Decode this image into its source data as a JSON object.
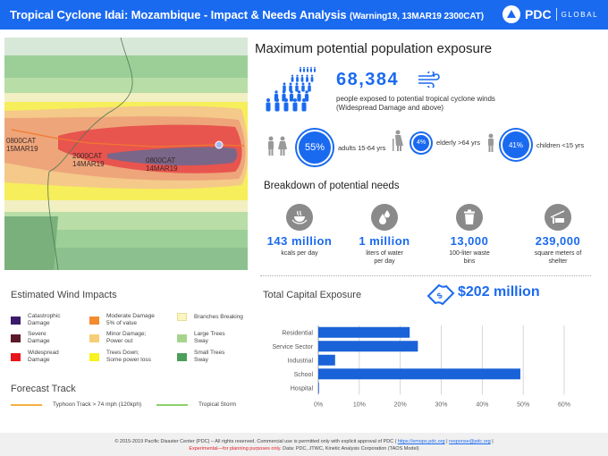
{
  "header": {
    "title": "Tropical Cyclone Idai: Mozambique - Impact & Needs Analysis",
    "subtitle": "(Warning19, 13MAR19 2300CAT)",
    "logo_brand": "PDC",
    "logo_tag": "GLOBAL"
  },
  "map": {
    "labels": [
      {
        "time": "0800CAT",
        "date": "15MAR19"
      },
      {
        "time": "2000CAT",
        "date": "14MAR19"
      },
      {
        "time": "0800CAT",
        "date": "14MAR19"
      }
    ]
  },
  "exposure": {
    "heading": "Maximum potential population exposure",
    "count": "68,384",
    "description": "people exposed to potential tropical cyclone winds",
    "qualifier": "(Widespread Damage and above)",
    "demographics": [
      {
        "percent": "55%",
        "label": "adults 15-64 yrs",
        "icon": "adults-icon"
      },
      {
        "percent": "4%",
        "label": "elderly >64 yrs",
        "icon": "elderly-icon"
      },
      {
        "percent": "41%",
        "label": "children <15 yrs",
        "icon": "child-icon"
      }
    ]
  },
  "needs": {
    "heading": "Breakdown of potential needs",
    "items": [
      {
        "value": "143 million",
        "unit1": "kcals per day",
        "unit2": "",
        "icon": "food-bowl-icon"
      },
      {
        "value": "1 million",
        "unit1": "liters of water",
        "unit2": "per day",
        "icon": "water-drop-icon"
      },
      {
        "value": "13,000",
        "unit1": "100-liter  waste",
        "unit2": "bins",
        "icon": "trash-bin-icon"
      },
      {
        "value": "239,000",
        "unit1": "square meters of",
        "unit2": "shelter",
        "icon": "shelter-icon"
      }
    ]
  },
  "wind_impacts": {
    "heading": "Estimated Wind Impacts",
    "items": [
      {
        "l1": "Catastrophic",
        "l2": "Damage",
        "color": "#3a1a6a"
      },
      {
        "l1": "Severe",
        "l2": "Damage",
        "color": "#5a1a2a"
      },
      {
        "l1": "Widespread",
        "l2": "Damage",
        "color": "#e8141c"
      },
      {
        "l1": "Moderate Damage",
        "l2": "5% of value",
        "color": "#f58a2e"
      },
      {
        "l1": "Minor Damage;",
        "l2": "Power out",
        "color": "#f5cf78"
      },
      {
        "l1": "Trees Down;",
        "l2": "Some power loss",
        "color": "#f8f21e"
      },
      {
        "l1": "Branches Breaking",
        "l2": "",
        "color": "#fbf5c0"
      },
      {
        "l1": "Large Trees",
        "l2": "Sway",
        "color": "#a6d48c"
      },
      {
        "l1": "Small Trees",
        "l2": "Sway",
        "color": "#4aa05a"
      }
    ]
  },
  "forecast_track": {
    "heading": "Forecast Track",
    "items": [
      {
        "label": "Typhoon Track > 74 mph (120kph)",
        "color": "#f5b040"
      },
      {
        "label": "Tropical Storm",
        "color": "#8ccf6a"
      }
    ]
  },
  "capital": {
    "heading": "Total Capital Exposure",
    "total": "$202 million"
  },
  "chart_data": {
    "type": "bar",
    "orientation": "horizontal",
    "title": "Total Capital Exposure",
    "categories": [
      "Residential",
      "Service Sector",
      "Industrial",
      "School",
      "Hospital"
    ],
    "values": [
      22.3,
      24.3,
      4.1,
      49.3,
      0.1
    ],
    "unit": "%",
    "xlim": [
      0,
      60
    ],
    "xticks": [
      "0%",
      "10%",
      "20%",
      "30%",
      "40%",
      "50%",
      "60%"
    ],
    "grid": true,
    "bar_color": "#1a62d8"
  },
  "footer": {
    "copyright": "© 2015-2019 Pacific Disaster Center (PDC) – All rights reserved. Commercial use is permitted only with explicit approval of PDC",
    "link1": "https://emops.pdc.org",
    "link2": "response@pdc.org",
    "experimental": "Experimental—for planning purposes only.",
    "data_note": "Data:  PDC, JTWC, Kinetic Analysis Corporation (TAOS Model)"
  }
}
